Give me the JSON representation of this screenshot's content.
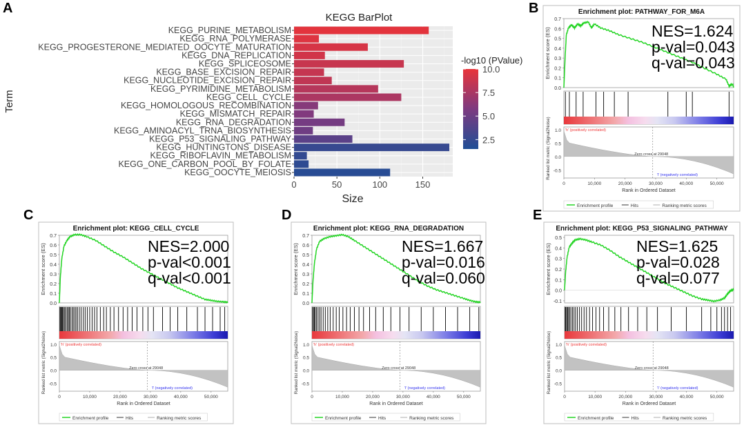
{
  "panel_labels": [
    "A",
    "B",
    "C",
    "D",
    "E"
  ],
  "chart_data": [
    {
      "panel": "A",
      "type": "bar",
      "orientation": "horizontal",
      "title": "KEGG BarPlot",
      "xlabel": "Size",
      "ylabel": "Term",
      "xlim": [
        0,
        185
      ],
      "xticks": [
        0,
        50,
        100,
        150
      ],
      "categories": [
        "KEGG_PURINE_METABOLISM",
        "KEGG_RNA_POLYMERASE",
        "KEGG_PROGESTERONE_MEDIATED_OOCYTE_MATURATION",
        "KEGG_DNA_REPLICATION",
        "KEGG_SPLICEOSOME",
        "KEGG_BASE_EXCISION_REPAIR",
        "KEGG_NUCLEOTIDE_EXCISION_REPAIR",
        "KEGG_PYRIMIDINE_METABOLISM",
        "KEGG_CELL_CYCLE",
        "KEGG_HOMOLOGOUS_RECOMBINATION",
        "KEGG_MISMATCH_REPAIR",
        "KEGG_RNA_DEGRADATION",
        "KEGG_AMINOACYL_TRNA_BIOSYNTHESIS",
        "KEGG_P53_SIGNALING_PATHWAY",
        "KEGG_HUNTINGTONS_DISEASE",
        "KEGG_RIBOFLAVIN_METABOLISM",
        "KEGG_ONE_CARBON_POOL_BY_FOLATE",
        "KEGG_OOCYTE_MEIOSIS"
      ],
      "values": [
        157,
        29,
        86,
        36,
        128,
        35,
        44,
        98,
        125,
        28,
        23,
        59,
        22,
        68,
        181,
        15,
        17,
        112
      ],
      "color_values": [
        9.8,
        9.6,
        9.3,
        9.1,
        8.7,
        8.6,
        8.4,
        8.0,
        7.6,
        6.1,
        5.9,
        5.4,
        5.1,
        4.2,
        2.6,
        2.4,
        2.2,
        1.9
      ],
      "legend": {
        "title": "-log10 (PValue)",
        "ticks": [
          10.0,
          7.5,
          5.0,
          2.5
        ],
        "tick_labels": [
          "10.0",
          "7.5",
          "5.0",
          "2.5"
        ],
        "range": [
          1.5,
          10.0
        ],
        "high_color": "#e8343a",
        "mid_color": "#7d3a80",
        "low_color": "#1f4e96"
      },
      "grid": true
    },
    {
      "panel": "B",
      "type": "line",
      "title": "Enrichment plot: PATHWAY_FOR_M6A",
      "ylabel": "Enrichment score (ES)",
      "y_ticks": [
        "0.7",
        "0.6",
        "0.5",
        "0.4",
        "0.3",
        "0.2",
        "0.1",
        "0.0"
      ],
      "ylim": [
        0,
        0.7
      ],
      "stats": [
        "NES=1.624",
        "p-val=0.043",
        "q-val=0.043"
      ],
      "es_curve": [
        [
          0,
          0
        ],
        [
          400,
          0.3
        ],
        [
          800,
          0.53
        ],
        [
          1500,
          0.6
        ],
        [
          2500,
          0.63
        ],
        [
          3500,
          0.6
        ],
        [
          4500,
          0.64
        ],
        [
          5500,
          0.62
        ],
        [
          6500,
          0.65
        ],
        [
          8000,
          0.66
        ],
        [
          9000,
          0.6
        ],
        [
          10000,
          0.64
        ],
        [
          12000,
          0.6
        ],
        [
          15000,
          0.57
        ],
        [
          18000,
          0.53
        ],
        [
          22000,
          0.49
        ],
        [
          26000,
          0.45
        ],
        [
          30000,
          0.4
        ],
        [
          34000,
          0.35
        ],
        [
          38000,
          0.3
        ],
        [
          42000,
          0.25
        ],
        [
          46000,
          0.19
        ],
        [
          50000,
          0.13
        ],
        [
          53000,
          0.08
        ],
        [
          54000,
          0.01
        ],
        [
          55000,
          0.03
        ],
        [
          55500,
          0.0
        ]
      ],
      "hits": [
        500,
        1800,
        4000,
        6300,
        10500,
        13000,
        16500,
        21000,
        34000,
        40000,
        42000,
        54000
      ],
      "rank_xlabel": "Rank in Ordered Dataset",
      "rank_ylabel": "Ranked list metric (Signal2Noise)",
      "rank_xticks": [
        "0",
        "10,000",
        "20,000",
        "30,000",
        "40,000",
        "50,000"
      ],
      "rank_yticks": [
        "1.0",
        "0.5",
        "0.0",
        "-0.5"
      ],
      "pos_label": "'h' (positively correlated)",
      "neg_label": "'l' (negatively correlated)",
      "zero_cross": "Zero cross at 29048",
      "legend": [
        "Enrichment profile",
        "Hits",
        "Ranking metric scores"
      ]
    },
    {
      "panel": "C",
      "type": "line",
      "title": "Enrichment plot: KEGG_CELL_CYCLE",
      "ylabel": "Enrichment score (ES)",
      "y_ticks": [
        "0.7",
        "0.6",
        "0.5",
        "0.4",
        "0.3",
        "0.2",
        "0.1",
        "0.0"
      ],
      "ylim": [
        0,
        0.7
      ],
      "stats": [
        "NES=2.000",
        "p-val<0.001",
        "q-val<0.001"
      ],
      "es_curve": [
        [
          0,
          0
        ],
        [
          300,
          0.25
        ],
        [
          800,
          0.45
        ],
        [
          1500,
          0.58
        ],
        [
          2500,
          0.64
        ],
        [
          3500,
          0.68
        ],
        [
          5000,
          0.7
        ],
        [
          7000,
          0.7
        ],
        [
          9000,
          0.68
        ],
        [
          12000,
          0.64
        ],
        [
          15000,
          0.58
        ],
        [
          18000,
          0.52
        ],
        [
          21000,
          0.47
        ],
        [
          24000,
          0.41
        ],
        [
          27000,
          0.35
        ],
        [
          30000,
          0.3
        ],
        [
          33000,
          0.25
        ],
        [
          36000,
          0.2
        ],
        [
          39000,
          0.15
        ],
        [
          42000,
          0.11
        ],
        [
          45000,
          0.07
        ],
        [
          48000,
          0.03
        ],
        [
          50000,
          0.02
        ],
        [
          52000,
          0.01
        ],
        [
          54000,
          0.005
        ],
        [
          55500,
          0.0
        ]
      ],
      "hits": [
        200,
        400,
        700,
        900,
        1100,
        1500,
        1800,
        2200,
        2600,
        3000,
        3300,
        3700,
        4200,
        4600,
        5100,
        5500,
        6000,
        6600,
        7200,
        7900,
        8500,
        9200,
        10000,
        10800,
        11600,
        12400,
        13500,
        14600,
        15500,
        16800,
        18000,
        19500,
        21000,
        22500,
        24000,
        25600,
        27500,
        29200,
        31000,
        34000,
        36500,
        39000,
        42000,
        45500,
        48000,
        50500,
        53000,
        54500
      ],
      "rank_xlabel": "Rank in Ordered Dataset",
      "rank_ylabel": "Ranked list metric (Signal2Noise)",
      "rank_xticks": [
        "0",
        "10,000",
        "20,000",
        "30,000",
        "40,000",
        "50,000"
      ],
      "rank_yticks": [
        "1.0",
        "0.5",
        "0.0",
        "-0.5"
      ],
      "pos_label": "'h' (positively correlated)",
      "neg_label": "'l' (negatively correlated)",
      "zero_cross": "Zero cross at 29048",
      "legend": [
        "Enrichment profile",
        "Hits",
        "Ranking metric scores"
      ]
    },
    {
      "panel": "D",
      "type": "line",
      "title": "Enrichment plot: KEGG_RNA_DEGRADATION",
      "ylabel": "Enrichment score (ES)",
      "y_ticks": [
        "0.7",
        "0.6",
        "0.5",
        "0.4",
        "0.3",
        "0.2",
        "0.1",
        "0.0"
      ],
      "ylim": [
        0,
        0.7
      ],
      "stats": [
        "NES=1.667",
        "p-val=0.016",
        "q-val=0.060"
      ],
      "es_curve": [
        [
          0,
          0
        ],
        [
          300,
          0.2
        ],
        [
          800,
          0.4
        ],
        [
          1500,
          0.55
        ],
        [
          2500,
          0.63
        ],
        [
          4000,
          0.66
        ],
        [
          6000,
          0.68
        ],
        [
          8000,
          0.69
        ],
        [
          10000,
          0.7
        ],
        [
          12000,
          0.68
        ],
        [
          14000,
          0.64
        ],
        [
          17000,
          0.58
        ],
        [
          20000,
          0.52
        ],
        [
          23000,
          0.46
        ],
        [
          26000,
          0.4
        ],
        [
          29000,
          0.34
        ],
        [
          32000,
          0.28
        ],
        [
          35000,
          0.22
        ],
        [
          38000,
          0.17
        ],
        [
          41000,
          0.13
        ],
        [
          44000,
          0.1
        ],
        [
          47000,
          0.07
        ],
        [
          50000,
          0.04
        ],
        [
          52000,
          0.02
        ],
        [
          54000,
          0.005
        ],
        [
          55500,
          0.0
        ]
      ],
      "hits": [
        200,
        500,
        800,
        1100,
        1500,
        2000,
        2500,
        3000,
        3700,
        4400,
        5200,
        6000,
        7000,
        8000,
        9000,
        10200,
        11400,
        12600,
        14000,
        15500,
        17000,
        19000,
        21000,
        23500,
        26000,
        29000,
        32000,
        36000,
        40000,
        44000,
        48000,
        52000,
        55000
      ],
      "rank_xlabel": "Rank in Ordered Dataset",
      "rank_ylabel": "Ranked list metric (Signal2Noise)",
      "rank_xticks": [
        "0",
        "10,000",
        "20,000",
        "30,000",
        "40,000",
        "50,000"
      ],
      "rank_yticks": [
        "1.0",
        "0.5",
        "0.0",
        "-0.5"
      ],
      "pos_label": "'h' (positively correlated)",
      "neg_label": "'l' (negatively correlated)",
      "zero_cross": "Zero cross at 29048",
      "legend": [
        "Enrichment profile",
        "Hits",
        "Ranking metric scores"
      ]
    },
    {
      "panel": "E",
      "type": "line",
      "title": "Enrichment plot: KEGG_P53_SIGNALING_PATHWAY",
      "ylabel": "Enrichment score (ES)",
      "y_ticks": [
        "0.5",
        "0.4",
        "0.3",
        "0.2",
        "0.1",
        "0.0",
        "-0.1"
      ],
      "ylim": [
        -0.12,
        0.52
      ],
      "stats": [
        "NES=1.625",
        "p-val=0.028",
        "q-val=0.077"
      ],
      "es_curve": [
        [
          0,
          0
        ],
        [
          300,
          0.15
        ],
        [
          800,
          0.3
        ],
        [
          1500,
          0.4
        ],
        [
          2500,
          0.44
        ],
        [
          3500,
          0.47
        ],
        [
          5000,
          0.48
        ],
        [
          7000,
          0.47
        ],
        [
          9000,
          0.45
        ],
        [
          12000,
          0.42
        ],
        [
          15000,
          0.37
        ],
        [
          18000,
          0.31
        ],
        [
          21000,
          0.26
        ],
        [
          24000,
          0.21
        ],
        [
          27000,
          0.16
        ],
        [
          30000,
          0.11
        ],
        [
          33000,
          0.06
        ],
        [
          36000,
          0.02
        ],
        [
          39000,
          -0.02
        ],
        [
          42000,
          -0.06
        ],
        [
          45000,
          -0.09
        ],
        [
          47000,
          -0.1
        ],
        [
          49000,
          -0.11
        ],
        [
          51000,
          -0.1
        ],
        [
          52500,
          -0.08
        ],
        [
          53500,
          -0.04
        ],
        [
          54500,
          -0.01
        ],
        [
          55500,
          0.0
        ]
      ],
      "hits": [
        200,
        400,
        700,
        1000,
        1300,
        1700,
        2100,
        2600,
        3100,
        3600,
        4200,
        4900,
        5600,
        6400,
        7200,
        8200,
        9200,
        10300,
        11500,
        12800,
        14500,
        16500,
        18500,
        21000,
        24000,
        27000,
        30500,
        35000,
        40000,
        45000,
        48000,
        50000,
        51500,
        52500,
        53500,
        54500
      ],
      "rank_xlabel": "Rank in Ordered Dataset",
      "rank_ylabel": "Ranked list metric (Signal2Noise)",
      "rank_xticks": [
        "0",
        "10,000",
        "20,000",
        "30,000",
        "40,000",
        "50,000"
      ],
      "rank_yticks": [
        "1.0",
        "0.5",
        "0.0",
        "-0.5"
      ],
      "pos_label": "'h' (positively correlated)",
      "neg_label": "'l' (negatively correlated)",
      "zero_cross": "Zero cross at 29048",
      "legend": [
        "Enrichment profile",
        "Hits",
        "Ranking metric scores"
      ]
    }
  ]
}
